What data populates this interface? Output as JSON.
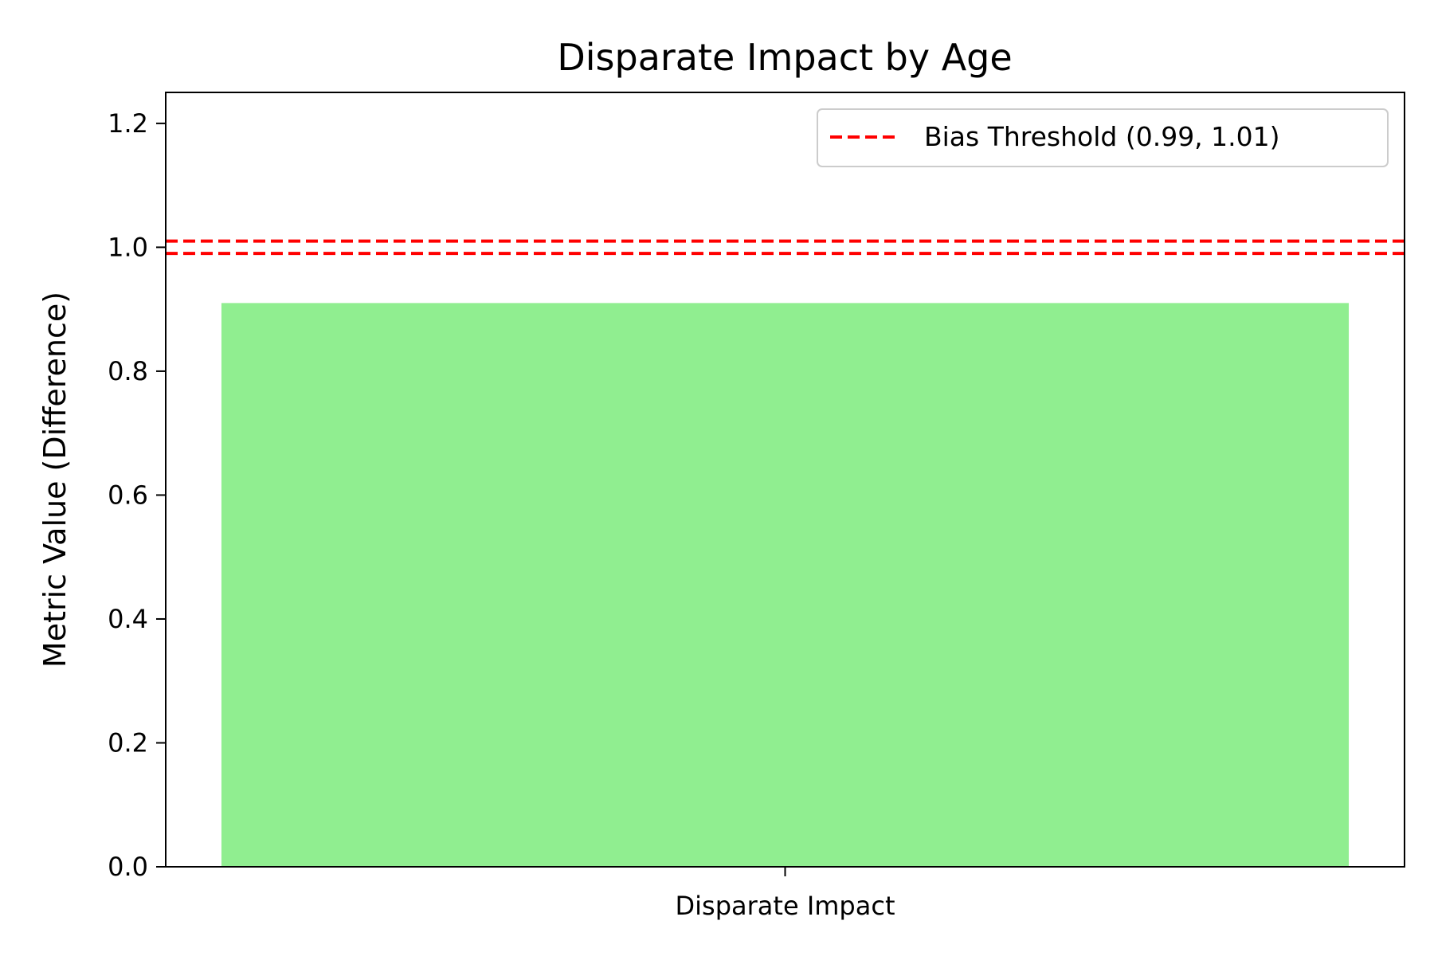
{
  "chart_data": {
    "type": "bar",
    "title": "Disparate Impact by Age",
    "xlabel": "",
    "ylabel": "Metric Value (Difference)",
    "categories": [
      "Disparate Impact"
    ],
    "values": [
      0.91
    ],
    "ylim": [
      0,
      1.25
    ],
    "yticks": [
      0.0,
      0.2,
      0.4,
      0.6,
      0.8,
      1.0,
      1.2
    ],
    "ytick_labels": [
      "0.0",
      "0.2",
      "0.4",
      "0.6",
      "0.8",
      "1.0",
      "1.2"
    ],
    "bar_color": "#90EE90",
    "thresholds": [
      0.99,
      1.01
    ],
    "threshold_color": "#FF0000",
    "grid": false,
    "legend": {
      "placement": "top-right",
      "entries": [
        {
          "label": "Bias Threshold (0.99, 1.01)",
          "style": "dashed",
          "color": "#FF0000"
        }
      ]
    }
  }
}
